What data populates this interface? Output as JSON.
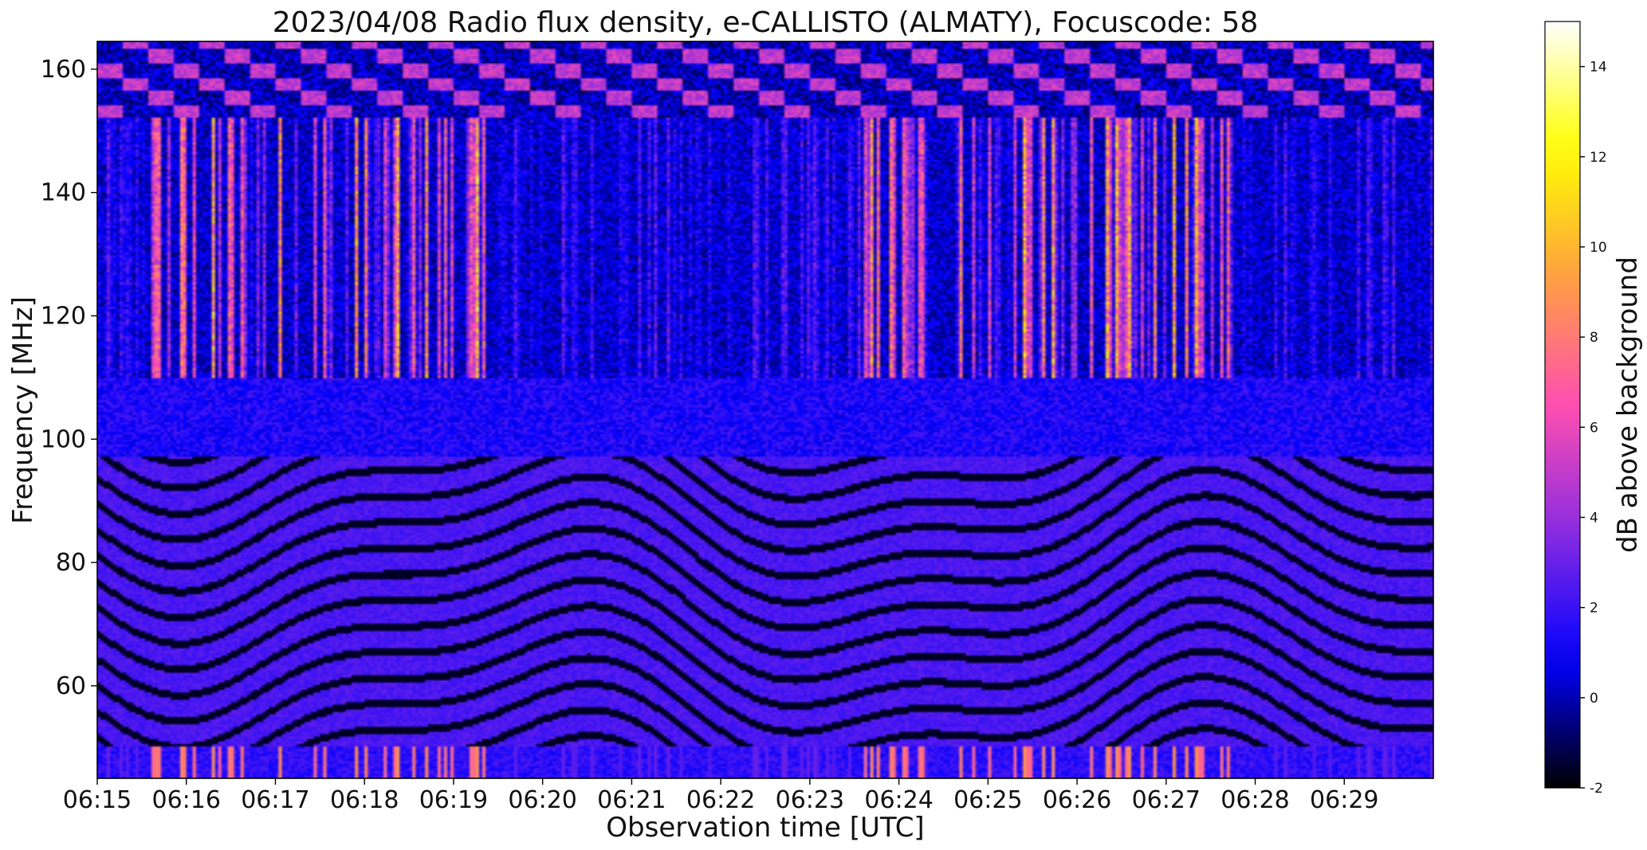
{
  "chart_data": {
    "type": "heatmap",
    "title": "2023/04/08  Radio flux density, e-CALLISTO (ALMATY), Focuscode: 58",
    "xlabel": "Observation time [UTC]",
    "ylabel": "Frequency [MHz]",
    "x_ticks": [
      "06:15",
      "06:16",
      "06:17",
      "06:18",
      "06:19",
      "06:20",
      "06:21",
      "06:22",
      "06:23",
      "06:24",
      "06:25",
      "06:26",
      "06:27",
      "06:28",
      "06:29"
    ],
    "x_range_minutes": [
      0,
      15
    ],
    "y_ticks": [
      60,
      80,
      100,
      120,
      140,
      160
    ],
    "ylim": [
      45,
      164.5
    ],
    "colorbar": {
      "label": "dB above background",
      "ticks": [
        -2,
        0,
        2,
        4,
        6,
        8,
        10,
        12,
        14
      ],
      "range": [
        -2,
        15
      ],
      "colormap": "gnuplot2",
      "colors": [
        "#000000",
        "#0000ff",
        "#8a2be2",
        "#ff4fb0",
        "#ffa040",
        "#ffff00",
        "#ffffff"
      ]
    },
    "features": {
      "band_edges_mhz": [
        97,
        110
      ],
      "curved_stripes_below_mhz": 97,
      "bright_vertical_bursts_between_mhz": [
        108,
        152
      ],
      "bright_bottom_band_below_mhz": 50,
      "bursty_periods": [
        [
          0.5,
          4.5
        ],
        [
          8.5,
          9.3
        ],
        [
          9.6,
          12.9
        ]
      ]
    }
  }
}
